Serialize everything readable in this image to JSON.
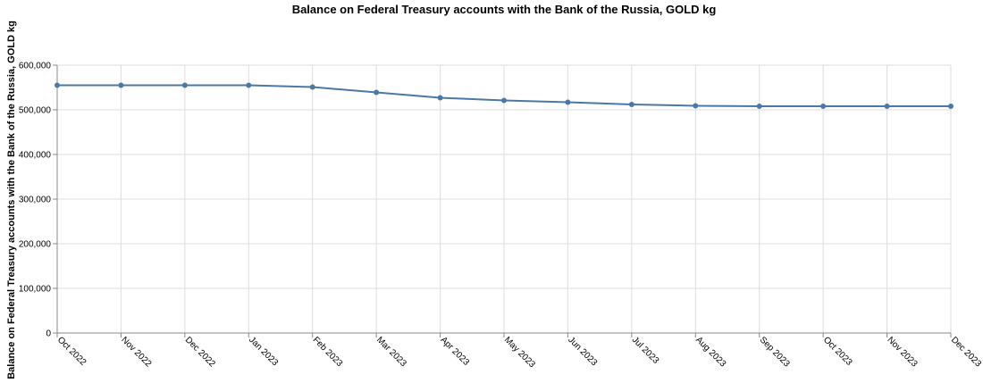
{
  "chart_data": {
    "type": "line",
    "title": "Balance on Federal Treasury accounts with the Bank of the Russia, GOLD kg",
    "xlabel": "",
    "ylabel": "Balance on Federal Treasury accounts with the Bank of the Russia, GOLD kg",
    "categories": [
      "Oct 2022",
      "Nov 2022",
      "Dec 2022",
      "Jan 2023",
      "Feb 2023",
      "Mar 2023",
      "Apr 2023",
      "May 2023",
      "Jun 2023",
      "Jul 2023",
      "Aug 2023",
      "Sep 2023",
      "Oct 2023",
      "Nov 2023",
      "Dec 2023"
    ],
    "series": [
      {
        "values": [
          555000,
          555000,
          555000,
          555000,
          551000,
          539000,
          527000,
          521000,
          517000,
          512000,
          509000,
          508000,
          508000,
          508000,
          508000
        ]
      }
    ],
    "ylim": [
      0,
      600000
    ],
    "yticks": [
      0,
      100000,
      200000,
      300000,
      400000,
      500000,
      600000
    ],
    "ytick_labels": [
      "0",
      "100,000",
      "200,000",
      "300,000",
      "400,000",
      "500,000",
      "600,000"
    ],
    "grid": true,
    "legend": "none",
    "line_color": "#4c78a8"
  }
}
